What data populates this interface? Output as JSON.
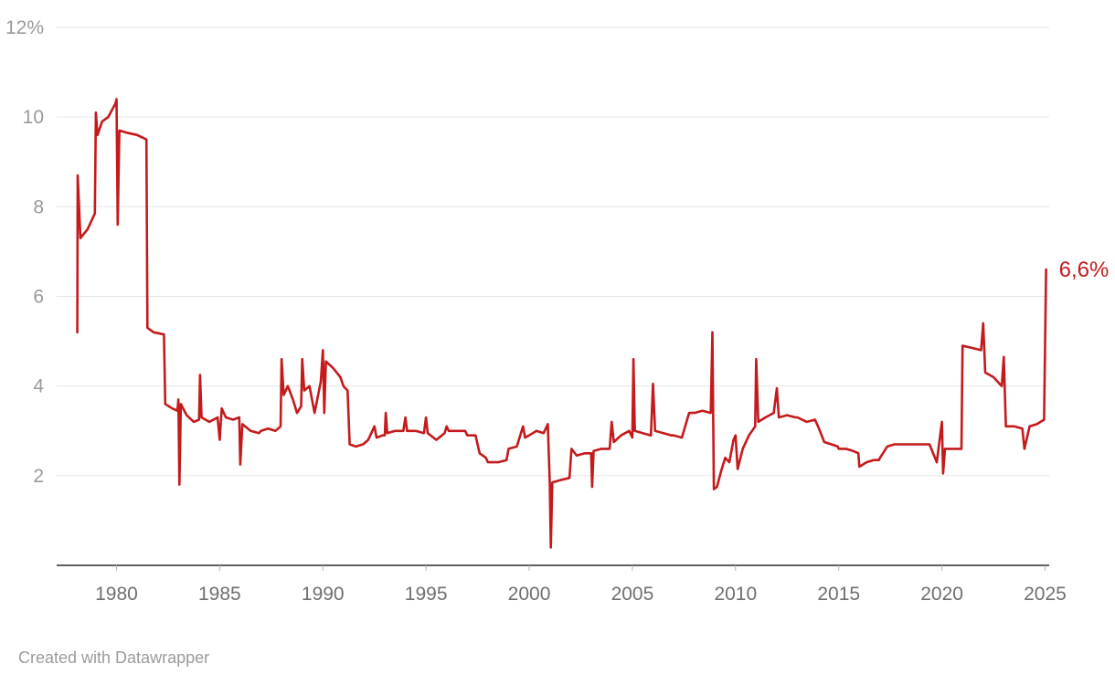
{
  "footer": {
    "credit": "Created with Datawrapper"
  },
  "chart_data": {
    "type": "line",
    "unit": "%",
    "color": "#c41a1c",
    "end_label": "6,6%",
    "end_value": 6.6,
    "ylim": [
      0,
      12
    ],
    "xlim": [
      1977.1,
      2025.2
    ],
    "grid": "horizontal",
    "legend_position": "none",
    "y_ticks": [
      {
        "value": 2,
        "label": "2"
      },
      {
        "value": 4,
        "label": "4"
      },
      {
        "value": 6,
        "label": "6"
      },
      {
        "value": 8,
        "label": "8"
      },
      {
        "value": 10,
        "label": "10"
      },
      {
        "value": 12,
        "label": "12%"
      }
    ],
    "x_ticks": [
      1980,
      1985,
      1990,
      1995,
      2000,
      2005,
      2010,
      2015,
      2020,
      2025
    ],
    "points": [
      [
        1978.1,
        5.2
      ],
      [
        1978.12,
        8.7
      ],
      [
        1978.25,
        7.3
      ],
      [
        1978.6,
        7.5
      ],
      [
        1978.95,
        7.85
      ],
      [
        1979.0,
        10.1
      ],
      [
        1979.08,
        9.6
      ],
      [
        1979.3,
        9.9
      ],
      [
        1979.6,
        10.0
      ],
      [
        1979.95,
        10.3
      ],
      [
        1980.0,
        10.4
      ],
      [
        1980.06,
        7.6
      ],
      [
        1980.14,
        9.7
      ],
      [
        1980.5,
        9.65
      ],
      [
        1981.0,
        9.6
      ],
      [
        1981.45,
        9.5
      ],
      [
        1981.5,
        5.3
      ],
      [
        1981.8,
        5.2
      ],
      [
        1982.3,
        5.15
      ],
      [
        1982.36,
        3.6
      ],
      [
        1982.7,
        3.5
      ],
      [
        1982.95,
        3.45
      ],
      [
        1983.0,
        3.7
      ],
      [
        1983.05,
        1.8
      ],
      [
        1983.12,
        3.6
      ],
      [
        1983.4,
        3.35
      ],
      [
        1983.75,
        3.2
      ],
      [
        1984.0,
        3.25
      ],
      [
        1984.05,
        4.25
      ],
      [
        1984.12,
        3.3
      ],
      [
        1984.5,
        3.2
      ],
      [
        1984.9,
        3.3
      ],
      [
        1985.0,
        2.8
      ],
      [
        1985.1,
        3.5
      ],
      [
        1985.3,
        3.3
      ],
      [
        1985.65,
        3.25
      ],
      [
        1985.95,
        3.3
      ],
      [
        1986.0,
        2.25
      ],
      [
        1986.1,
        3.15
      ],
      [
        1986.5,
        3.0
      ],
      [
        1986.9,
        2.95
      ],
      [
        1987.0,
        3.0
      ],
      [
        1987.35,
        3.05
      ],
      [
        1987.7,
        3.0
      ],
      [
        1987.95,
        3.1
      ],
      [
        1988.0,
        4.6
      ],
      [
        1988.1,
        3.8
      ],
      [
        1988.3,
        4.0
      ],
      [
        1988.55,
        3.7
      ],
      [
        1988.75,
        3.4
      ],
      [
        1988.95,
        3.55
      ],
      [
        1989.0,
        4.6
      ],
      [
        1989.1,
        3.9
      ],
      [
        1989.35,
        4.0
      ],
      [
        1989.6,
        3.4
      ],
      [
        1989.9,
        4.1
      ],
      [
        1990.0,
        4.8
      ],
      [
        1990.07,
        3.4
      ],
      [
        1990.15,
        4.55
      ],
      [
        1990.5,
        4.4
      ],
      [
        1990.85,
        4.2
      ],
      [
        1991.0,
        4.0
      ],
      [
        1991.2,
        3.9
      ],
      [
        1991.3,
        2.7
      ],
      [
        1991.6,
        2.65
      ],
      [
        1991.95,
        2.7
      ],
      [
        1992.2,
        2.8
      ],
      [
        1992.5,
        3.1
      ],
      [
        1992.6,
        2.85
      ],
      [
        1992.9,
        2.9
      ],
      [
        1993.0,
        2.9
      ],
      [
        1993.05,
        3.4
      ],
      [
        1993.12,
        2.95
      ],
      [
        1993.5,
        3.0
      ],
      [
        1993.9,
        3.0
      ],
      [
        1994.0,
        3.3
      ],
      [
        1994.08,
        3.0
      ],
      [
        1994.5,
        3.0
      ],
      [
        1994.9,
        2.95
      ],
      [
        1995.0,
        3.3
      ],
      [
        1995.08,
        2.95
      ],
      [
        1995.5,
        2.8
      ],
      [
        1995.9,
        2.95
      ],
      [
        1996.0,
        3.1
      ],
      [
        1996.1,
        3.0
      ],
      [
        1996.5,
        3.0
      ],
      [
        1996.9,
        3.0
      ],
      [
        1997.0,
        2.9
      ],
      [
        1997.4,
        2.9
      ],
      [
        1997.6,
        2.5
      ],
      [
        1997.9,
        2.4
      ],
      [
        1998.0,
        2.3
      ],
      [
        1998.5,
        2.3
      ],
      [
        1998.9,
        2.35
      ],
      [
        1999.0,
        2.6
      ],
      [
        1999.4,
        2.65
      ],
      [
        1999.7,
        3.1
      ],
      [
        1999.8,
        2.85
      ],
      [
        2000.0,
        2.9
      ],
      [
        2000.35,
        3.0
      ],
      [
        2000.7,
        2.95
      ],
      [
        2000.9,
        3.15
      ],
      [
        2001.0,
        1.8
      ],
      [
        2001.05,
        0.4
      ],
      [
        2001.12,
        1.85
      ],
      [
        2001.5,
        1.9
      ],
      [
        2001.95,
        1.95
      ],
      [
        2002.05,
        2.6
      ],
      [
        2002.3,
        2.45
      ],
      [
        2002.7,
        2.5
      ],
      [
        2002.95,
        2.5
      ],
      [
        2003.0,
        2.5
      ],
      [
        2003.05,
        1.75
      ],
      [
        2003.12,
        2.55
      ],
      [
        2003.5,
        2.6
      ],
      [
        2003.9,
        2.6
      ],
      [
        2004.0,
        3.2
      ],
      [
        2004.1,
        2.75
      ],
      [
        2004.45,
        2.9
      ],
      [
        2004.85,
        3.0
      ],
      [
        2005.0,
        2.85
      ],
      [
        2005.05,
        4.6
      ],
      [
        2005.12,
        3.0
      ],
      [
        2005.5,
        2.95
      ],
      [
        2005.9,
        2.9
      ],
      [
        2006.0,
        4.05
      ],
      [
        2006.1,
        3.0
      ],
      [
        2006.5,
        2.95
      ],
      [
        2006.9,
        2.9
      ],
      [
        2007.0,
        2.9
      ],
      [
        2007.4,
        2.85
      ],
      [
        2007.75,
        3.4
      ],
      [
        2008.0,
        3.4
      ],
      [
        2008.4,
        3.45
      ],
      [
        2008.8,
        3.4
      ],
      [
        2008.88,
        5.2
      ],
      [
        2008.95,
        1.7
      ],
      [
        2009.1,
        1.75
      ],
      [
        2009.3,
        2.1
      ],
      [
        2009.5,
        2.4
      ],
      [
        2009.7,
        2.3
      ],
      [
        2009.9,
        2.8
      ],
      [
        2010.0,
        2.9
      ],
      [
        2010.1,
        2.15
      ],
      [
        2010.35,
        2.6
      ],
      [
        2010.65,
        2.9
      ],
      [
        2010.95,
        3.1
      ],
      [
        2011.0,
        4.6
      ],
      [
        2011.1,
        3.2
      ],
      [
        2011.45,
        3.3
      ],
      [
        2011.85,
        3.4
      ],
      [
        2012.0,
        3.95
      ],
      [
        2012.1,
        3.3
      ],
      [
        2012.5,
        3.35
      ],
      [
        2012.9,
        3.3
      ],
      [
        2013.0,
        3.3
      ],
      [
        2013.45,
        3.2
      ],
      [
        2013.85,
        3.25
      ],
      [
        2014.0,
        3.1
      ],
      [
        2014.3,
        2.75
      ],
      [
        2014.65,
        2.7
      ],
      [
        2014.95,
        2.65
      ],
      [
        2015.0,
        2.6
      ],
      [
        2015.35,
        2.6
      ],
      [
        2015.7,
        2.55
      ],
      [
        2015.95,
        2.5
      ],
      [
        2016.0,
        2.2
      ],
      [
        2016.35,
        2.3
      ],
      [
        2016.7,
        2.35
      ],
      [
        2016.95,
        2.35
      ],
      [
        2017.0,
        2.4
      ],
      [
        2017.35,
        2.65
      ],
      [
        2017.7,
        2.7
      ],
      [
        2018.0,
        2.7
      ],
      [
        2018.5,
        2.7
      ],
      [
        2018.95,
        2.7
      ],
      [
        2019.0,
        2.7
      ],
      [
        2019.4,
        2.7
      ],
      [
        2019.75,
        2.3
      ],
      [
        2020.0,
        3.2
      ],
      [
        2020.06,
        2.05
      ],
      [
        2020.15,
        2.6
      ],
      [
        2020.55,
        2.6
      ],
      [
        2020.95,
        2.6
      ],
      [
        2021.0,
        4.9
      ],
      [
        2021.45,
        4.85
      ],
      [
        2021.9,
        4.8
      ],
      [
        2022.0,
        5.4
      ],
      [
        2022.1,
        4.3
      ],
      [
        2022.5,
        4.2
      ],
      [
        2022.9,
        4.0
      ],
      [
        2023.0,
        4.65
      ],
      [
        2023.1,
        3.1
      ],
      [
        2023.5,
        3.1
      ],
      [
        2023.9,
        3.05
      ],
      [
        2024.0,
        2.6
      ],
      [
        2024.25,
        3.1
      ],
      [
        2024.6,
        3.15
      ],
      [
        2024.95,
        3.25
      ],
      [
        2025.05,
        6.6
      ]
    ]
  }
}
